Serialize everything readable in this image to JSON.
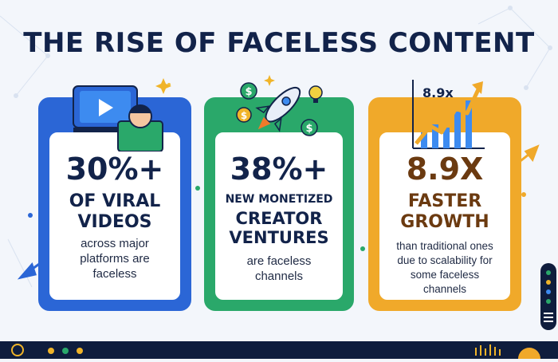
{
  "title": "THE RISE OF FACELESS CONTENT",
  "cards": [
    {
      "stat": "30%+",
      "headline_lines": [
        "OF VIRAL",
        "VIDEOS"
      ],
      "description_lines": [
        "across major",
        "platforms are",
        "faceless"
      ],
      "icon": "video-creator-icon",
      "color": "#2b66d6"
    },
    {
      "stat": "38%+",
      "headline_lines": [
        "NEW MONETIZED",
        "CREATOR",
        "VENTURES"
      ],
      "description_lines": [
        "are faceless",
        "channels"
      ],
      "icon": "rocket-money-icon",
      "color": "#2aa86a"
    },
    {
      "stat": "8.9X",
      "headline_lines": [
        "FASTER",
        "GROWTH"
      ],
      "description_lines": [
        "than traditional ones",
        "due to scalability for",
        "some faceless",
        "channels"
      ],
      "icon": "growth-chart-icon",
      "chart_label": "8.9x",
      "color": "#f0a92a"
    }
  ]
}
